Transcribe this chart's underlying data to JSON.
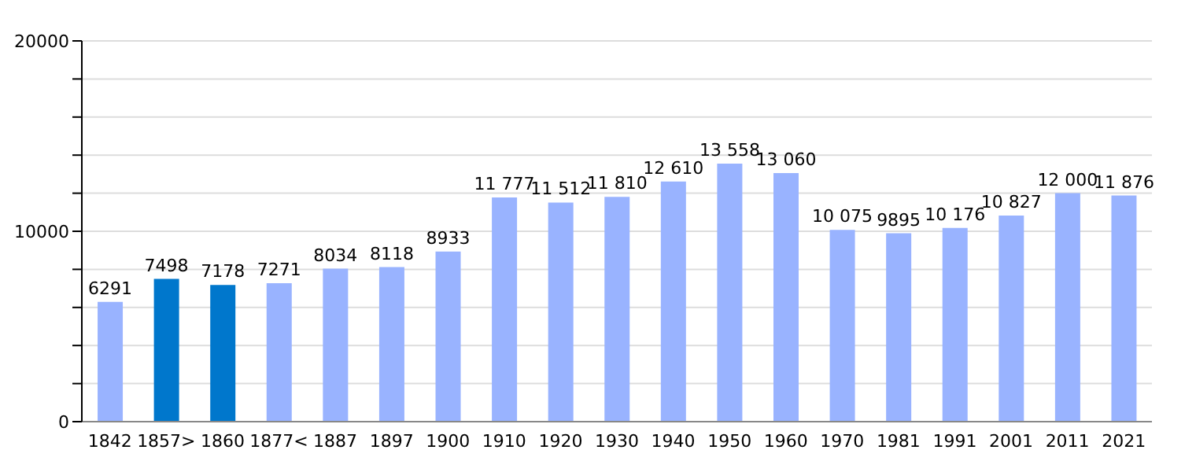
{
  "chart_data": {
    "type": "bar",
    "categories": [
      "1842",
      "1857>",
      "1860",
      "1877<",
      "1887",
      "1897",
      "1900",
      "1910",
      "1920",
      "1930",
      "1940",
      "1950",
      "1960",
      "1970",
      "1981",
      "1991",
      "2001",
      "2011",
      "2021"
    ],
    "values": [
      6291,
      7498,
      7178,
      7271,
      8034,
      8118,
      8933,
      11777,
      11512,
      11810,
      12610,
      13558,
      13060,
      10075,
      9895,
      10176,
      10827,
      12000,
      11876
    ],
    "colors": [
      "#99b3ff",
      "#0077cc",
      "#0077cc",
      "#99b3ff",
      "#99b3ff",
      "#99b3ff",
      "#99b3ff",
      "#99b3ff",
      "#99b3ff",
      "#99b3ff",
      "#99b3ff",
      "#99b3ff",
      "#99b3ff",
      "#99b3ff",
      "#99b3ff",
      "#99b3ff",
      "#99b3ff",
      "#99b3ff",
      "#99b3ff"
    ],
    "value_labels": [
      "6291",
      "7498",
      "7178",
      "7271",
      "8034",
      "8118",
      "8933",
      "11 777",
      "11 512",
      "11 810",
      "12 610",
      "13 558",
      "13 060",
      "10 075",
      "9895",
      "10 176",
      "10 827",
      "12 000",
      "11 876"
    ],
    "ylim": [
      0,
      20000
    ],
    "yticks": [
      0,
      {
        "value": 2000,
        "label": null
      },
      {
        "value": 4000,
        "label": null
      },
      {
        "value": 6000,
        "label": null
      },
      {
        "value": 8000,
        "label": null
      },
      10000,
      {
        "value": 12000,
        "label": null
      },
      {
        "value": 14000,
        "label": null
      },
      {
        "value": 16000,
        "label": null
      },
      {
        "value": 18000,
        "label": null
      },
      20000
    ],
    "grid": "y",
    "legend": false
  }
}
